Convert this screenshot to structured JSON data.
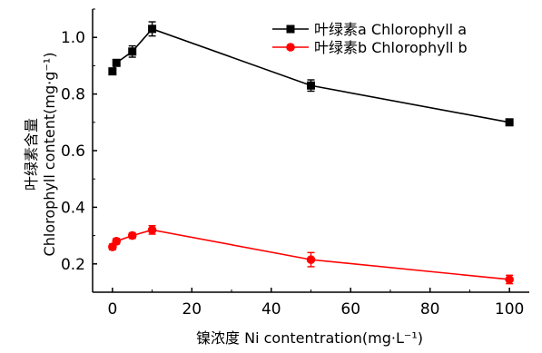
{
  "chart_data": {
    "type": "line",
    "x": [
      0,
      1,
      5,
      10,
      50,
      100
    ],
    "series": [
      {
        "name": "叶绿素a Chlorophyll a",
        "color": "#000000",
        "marker": "square",
        "values": [
          0.88,
          0.91,
          0.95,
          1.03,
          0.83,
          0.7
        ],
        "errors": [
          0.01,
          0.01,
          0.02,
          0.025,
          0.02,
          0.01
        ]
      },
      {
        "name": "叶绿素b Chlorophyll b",
        "color": "#ff0000",
        "marker": "circle",
        "values": [
          0.26,
          0.28,
          0.3,
          0.32,
          0.215,
          0.145
        ],
        "errors": [
          0.01,
          0.01,
          0.01,
          0.015,
          0.025,
          0.015
        ]
      }
    ],
    "xlim": [
      -5,
      105
    ],
    "ylim": [
      0.1,
      1.1
    ],
    "xticks": [
      "0",
      "20",
      "40",
      "60",
      "80",
      "100"
    ],
    "yticks": [
      "0.2",
      "0.4",
      "0.6",
      "0.8",
      "1.0"
    ],
    "xlabel": "镍浓度 Ni contentration(mg·L⁻¹)",
    "ylabel_line1": "叶绿素含量",
    "ylabel_line2": "Chlorophyll content(mg·g⁻¹)",
    "legend_position": "top-right",
    "grid": false
  }
}
